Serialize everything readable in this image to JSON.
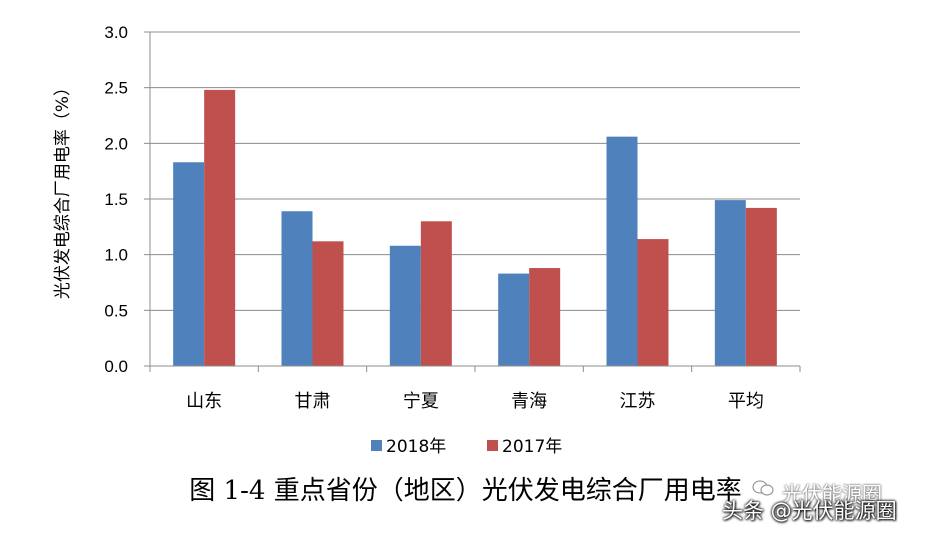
{
  "chart_data": {
    "type": "bar",
    "categories": [
      "山东",
      "甘肃",
      "宁夏",
      "青海",
      "江苏",
      "平均"
    ],
    "series": [
      {
        "name": "2018年",
        "color": "#4F81BD",
        "values": [
          1.83,
          1.39,
          1.08,
          0.83,
          2.06,
          1.49
        ]
      },
      {
        "name": "2017年",
        "color": "#C0504D",
        "values": [
          2.48,
          1.12,
          1.3,
          0.88,
          1.14,
          1.42
        ]
      }
    ],
    "ylabel": "光伏发电综合厂用电率（%）",
    "yticks": [
      "0.0",
      "0.5",
      "1.0",
      "1.5",
      "2.0",
      "2.5",
      "3.0"
    ],
    "ylim": [
      0,
      3.0
    ],
    "grid": true,
    "legend_position": "bottom"
  },
  "caption": "图 1-4 重点省份（地区）光伏发电综合厂用电率",
  "watermark": {
    "top": "光伏能源圈",
    "bottom": "头条 @光伏能源圈"
  }
}
